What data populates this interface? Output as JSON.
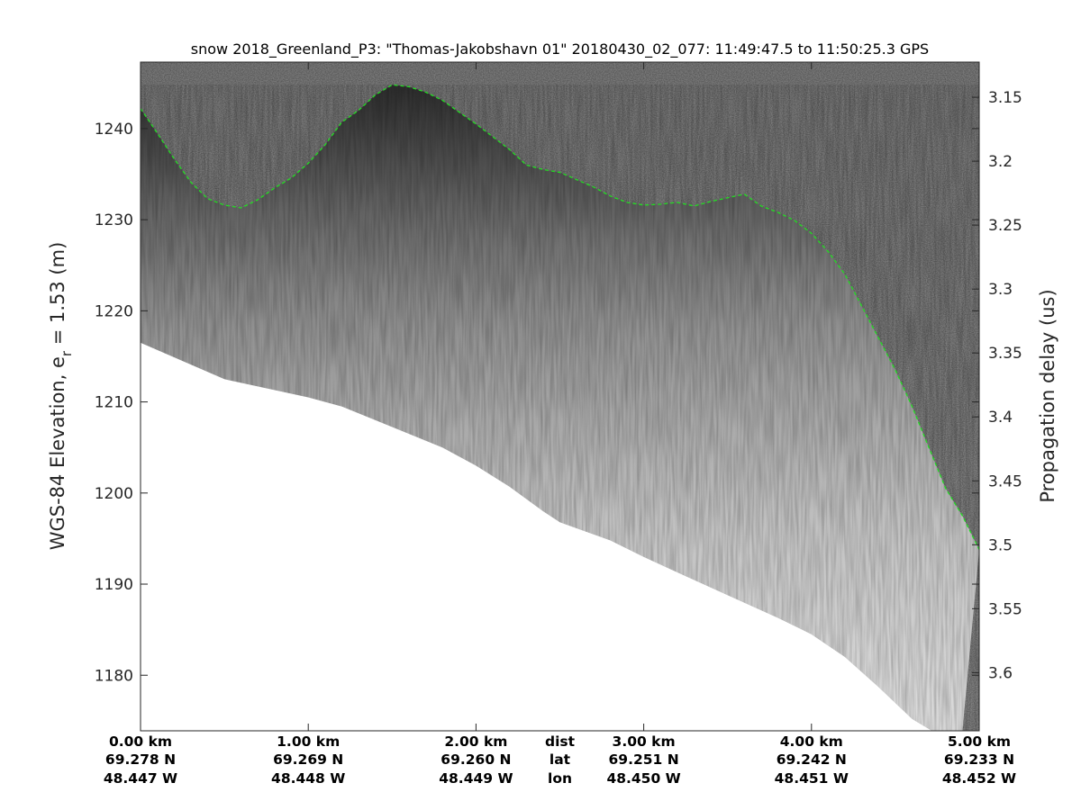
{
  "chart_data": {
    "type": "radar-echogram",
    "title": "snow 2018_Greenland_P3: \"Thomas-Jakobshavn 01\"  20180430_02_077: 11:49:47.5 to 11:50:25.3 GPS",
    "ylabel_left": "WGS-84 Elevation, e",
    "ylabel_left_sub": "r",
    "ylabel_left_tail": " = 1.53 (m)",
    "ylabel_right": "Propagation delay (us)",
    "y_left_range": [
      1173.9,
      1247.3
    ],
    "y_left_ticks": [
      1180,
      1190,
      1200,
      1210,
      1220,
      1230,
      1240
    ],
    "y_right_range": [
      3.1225,
      3.6455
    ],
    "y_right_ticks": [
      3.15,
      3.2,
      3.25,
      3.3,
      3.35,
      3.4,
      3.45,
      3.5,
      3.55,
      3.6
    ],
    "x_range_km": [
      0,
      5
    ],
    "x_columns": [
      {
        "dist": "0.00 km",
        "lat": "69.278 N",
        "lon": "48.447 W",
        "km": 0
      },
      {
        "dist": "1.00 km",
        "lat": "69.269 N",
        "lon": "48.448 W",
        "km": 1
      },
      {
        "dist": "2.00 km",
        "lat": "69.260 N",
        "lon": "48.449 W",
        "km": 2
      },
      {
        "dist": "3.00 km",
        "lat": "69.251 N",
        "lon": "48.450 W",
        "km": 3
      },
      {
        "dist": "4.00 km",
        "lat": "69.242 N",
        "lon": "48.451 W",
        "km": 4
      },
      {
        "dist": "5.00 km",
        "lat": "69.233 N",
        "lon": "48.452 W",
        "km": 5
      }
    ],
    "row_labels": {
      "dist": "dist",
      "lat": "lat",
      "lon": "lon"
    },
    "surface_pick": {
      "name": "surface",
      "color": "#22dd22",
      "x_km": [
        0.0,
        0.1,
        0.2,
        0.3,
        0.4,
        0.5,
        0.6,
        0.7,
        0.8,
        0.9,
        1.0,
        1.1,
        1.2,
        1.3,
        1.4,
        1.5,
        1.6,
        1.7,
        1.8,
        1.9,
        2.0,
        2.1,
        2.2,
        2.3,
        2.4,
        2.5,
        2.6,
        2.7,
        2.8,
        2.9,
        3.0,
        3.1,
        3.2,
        3.3,
        3.4,
        3.5,
        3.6,
        3.7,
        3.8,
        3.9,
        4.0,
        4.1,
        4.2,
        4.3,
        4.4,
        4.5,
        4.6,
        4.7,
        4.8,
        4.9,
        5.0
      ],
      "elev_m": [
        1242.2,
        1239.5,
        1236.7,
        1234.1,
        1232.3,
        1231.6,
        1231.3,
        1232.2,
        1233.5,
        1234.6,
        1236.2,
        1238.2,
        1240.7,
        1242.0,
        1243.7,
        1244.8,
        1244.6,
        1244.0,
        1243.1,
        1241.8,
        1240.5,
        1239.1,
        1237.7,
        1236.0,
        1235.5,
        1235.2,
        1234.4,
        1233.6,
        1232.6,
        1231.9,
        1231.6,
        1231.7,
        1231.9,
        1231.5,
        1232.0,
        1232.4,
        1232.8,
        1231.5,
        1230.8,
        1229.9,
        1228.5,
        1226.5,
        1224.0,
        1220.5,
        1217.0,
        1213.5,
        1209.5,
        1205.0,
        1200.5,
        1197.5,
        1193.8
      ]
    },
    "data_floor": {
      "x_km": [
        0.0,
        0.5,
        1.0,
        1.2,
        1.6,
        1.8,
        2.0,
        2.2,
        2.4,
        2.5,
        2.8,
        3.0,
        3.2,
        3.5,
        3.8,
        4.0,
        4.2,
        4.4,
        4.6,
        4.8,
        4.9
      ],
      "elev_m": [
        1216.5,
        1212.5,
        1210.5,
        1209.5,
        1206.5,
        1205.0,
        1203.0,
        1200.7,
        1198.0,
        1196.8,
        1194.8,
        1193.0,
        1191.3,
        1188.8,
        1186.3,
        1184.5,
        1182.0,
        1178.7,
        1175.2,
        1173.0,
        1173.9
      ]
    },
    "grid": false,
    "colormap": "gray"
  }
}
